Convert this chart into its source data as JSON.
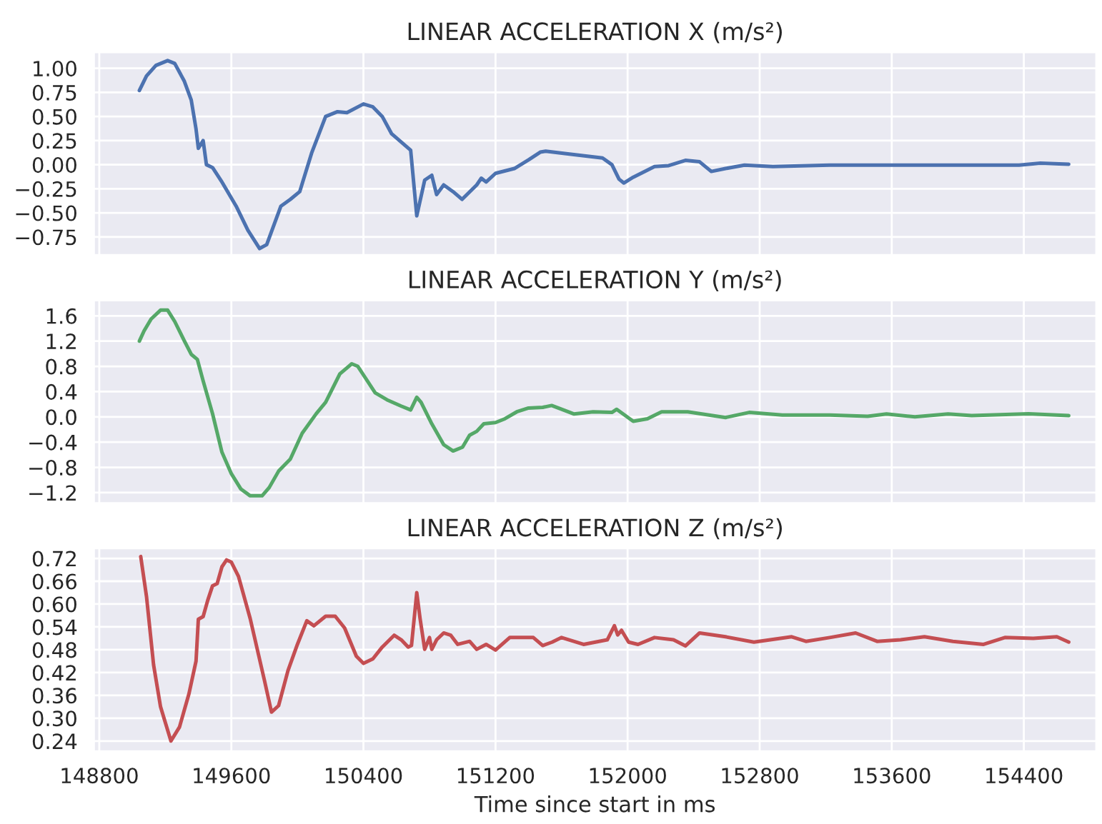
{
  "chart_data": [
    {
      "type": "line",
      "title": "LINEAR ACCELERATION X (m/s²)",
      "grid": true,
      "tick_labels": "y",
      "xlim": [
        148766,
        154840
      ],
      "ylim": [
        -0.94,
        1.17
      ],
      "xticks": [
        148800,
        149600,
        150400,
        151200,
        152000,
        152800,
        153600,
        154400
      ],
      "yticks": [
        {
          "value": -0.75,
          "label": "−0.75"
        },
        {
          "value": -0.5,
          "label": "−0.50"
        },
        {
          "value": -0.25,
          "label": "−0.25"
        },
        {
          "value": 0,
          "label": "0.00"
        },
        {
          "value": 0.25,
          "label": "0.25"
        },
        {
          "value": 0.5,
          "label": "0.50"
        },
        {
          "value": 0.75,
          "label": "0.75"
        },
        {
          "value": 1,
          "label": "1.00"
        }
      ],
      "x": [
        149043,
        149086,
        149143,
        149214,
        149257,
        149314,
        149357,
        149386,
        149400,
        149429,
        149449,
        149486,
        149543,
        149629,
        149700,
        149771,
        149814,
        149900,
        149957,
        150014,
        150086,
        150171,
        150243,
        150300,
        150400,
        150457,
        150514,
        150571,
        150686,
        150723,
        150771,
        150814,
        150843,
        150886,
        150943,
        150997,
        151086,
        151114,
        151143,
        151200,
        151314,
        151400,
        151471,
        151504,
        151647,
        151848,
        151905,
        151948,
        151977,
        152034,
        152163,
        152249,
        152350,
        152436,
        152507,
        152593,
        152708,
        152880,
        153224,
        153511,
        153798,
        154084,
        154371,
        154500,
        154672
      ],
      "series": [
        {
          "color": "#4c72b0",
          "values": [
            0.77,
            0.92,
            1.03,
            1.08,
            1.05,
            0.87,
            0.67,
            0.37,
            0.17,
            0.25,
            0.0,
            -0.03,
            -0.18,
            -0.43,
            -0.68,
            -0.87,
            -0.83,
            -0.43,
            -0.36,
            -0.28,
            0.12,
            0.5,
            0.55,
            0.54,
            0.63,
            0.6,
            0.5,
            0.32,
            0.15,
            -0.53,
            -0.16,
            -0.11,
            -0.31,
            -0.21,
            -0.28,
            -0.36,
            -0.21,
            -0.14,
            -0.18,
            -0.09,
            -0.04,
            0.05,
            0.13,
            0.14,
            0.11,
            0.07,
            0.0,
            -0.15,
            -0.19,
            -0.13,
            -0.02,
            -0.01,
            0.045,
            0.03,
            -0.07,
            -0.04,
            -0.005,
            -0.02,
            -0.005,
            -0.005,
            -0.005,
            -0.005,
            -0.005,
            0.015,
            0.005
          ]
        }
      ]
    },
    {
      "type": "line",
      "title": "LINEAR ACCELERATION Y (m/s²)",
      "grid": true,
      "tick_labels": "y",
      "xlim": [
        148766,
        154840
      ],
      "ylim": [
        -1.37,
        1.85
      ],
      "xticks": [
        148800,
        149600,
        150400,
        151200,
        152000,
        152800,
        153600,
        154400
      ],
      "yticks": [
        {
          "value": -1.2,
          "label": "−1.2"
        },
        {
          "value": -0.8,
          "label": "−0.8"
        },
        {
          "value": -0.4,
          "label": "−0.4"
        },
        {
          "value": 0,
          "label": "0.0"
        },
        {
          "value": 0.4,
          "label": "0.4"
        },
        {
          "value": 0.8,
          "label": "0.8"
        },
        {
          "value": 1.2,
          "label": "1.2"
        },
        {
          "value": 1.6,
          "label": "1.6"
        }
      ],
      "x": [
        149043,
        149071,
        149114,
        149171,
        149214,
        149257,
        149314,
        149357,
        149394,
        149429,
        149486,
        149543,
        149600,
        149657,
        149714,
        149786,
        149829,
        149886,
        149957,
        150029,
        150114,
        150171,
        150257,
        150329,
        150366,
        150471,
        150543,
        150629,
        150686,
        150723,
        150749,
        150814,
        150886,
        150943,
        151000,
        151043,
        151086,
        151129,
        151200,
        151257,
        151329,
        151400,
        151486,
        151540,
        151600,
        151676,
        151791,
        151905,
        151934,
        152034,
        152120,
        152206,
        152364,
        152593,
        152736,
        152937,
        153224,
        153454,
        153568,
        153740,
        153941,
        154084,
        154428,
        154672
      ],
      "series": [
        {
          "color": "#55a868",
          "values": [
            1.2,
            1.36,
            1.55,
            1.69,
            1.69,
            1.51,
            1.21,
            0.99,
            0.91,
            0.57,
            0.05,
            -0.56,
            -0.9,
            -1.14,
            -1.25,
            -1.25,
            -1.12,
            -0.86,
            -0.67,
            -0.26,
            0.05,
            0.23,
            0.68,
            0.84,
            0.8,
            0.38,
            0.27,
            0.17,
            0.11,
            0.31,
            0.23,
            -0.11,
            -0.44,
            -0.54,
            -0.48,
            -0.29,
            -0.23,
            -0.11,
            -0.09,
            -0.03,
            0.08,
            0.14,
            0.15,
            0.18,
            0.12,
            0.045,
            0.08,
            0.07,
            0.12,
            -0.07,
            -0.03,
            0.08,
            0.08,
            -0.01,
            0.07,
            0.03,
            0.03,
            0.01,
            0.045,
            0.0,
            0.045,
            0.02,
            0.05,
            0.02
          ]
        }
      ]
    },
    {
      "type": "line",
      "title": "LINEAR ACCELERATION Z (m/s²)",
      "xlabel": "Time since start in ms",
      "grid": true,
      "xlim": [
        148766,
        154840
      ],
      "ylim": [
        0.2125,
        0.747
      ],
      "xticks": [
        148800,
        149600,
        150400,
        151200,
        152000,
        152800,
        153600,
        154400
      ],
      "yticks": [
        {
          "value": 0.24,
          "label": "0.24"
        },
        {
          "value": 0.3,
          "label": "0.30"
        },
        {
          "value": 0.36,
          "label": "0.36"
        },
        {
          "value": 0.42,
          "label": "0.42"
        },
        {
          "value": 0.48,
          "label": "0.48"
        },
        {
          "value": 0.54,
          "label": "0.54"
        },
        {
          "value": 0.6,
          "label": "0.60"
        },
        {
          "value": 0.66,
          "label": "0.66"
        },
        {
          "value": 0.72,
          "label": "0.72"
        }
      ],
      "x": [
        149051,
        149086,
        149129,
        149171,
        149234,
        149286,
        149343,
        149386,
        149400,
        149429,
        149457,
        149486,
        149514,
        149543,
        149571,
        149600,
        149643,
        149714,
        149800,
        149843,
        149886,
        149943,
        150000,
        150057,
        150100,
        150171,
        150229,
        150286,
        150357,
        150400,
        150457,
        150514,
        150586,
        150629,
        150671,
        150691,
        150723,
        150743,
        150771,
        150800,
        150814,
        150843,
        150886,
        150929,
        150971,
        151043,
        151086,
        151143,
        151200,
        151286,
        151429,
        151486,
        151543,
        151600,
        151733,
        151877,
        151920,
        151940,
        151963,
        152006,
        152063,
        152163,
        152278,
        152350,
        152436,
        152593,
        152765,
        152994,
        153080,
        153224,
        153381,
        153511,
        153654,
        153798,
        153970,
        154156,
        154285,
        154457,
        154600,
        154672
      ],
      "series": [
        {
          "color": "#c44e52",
          "values": [
            0.725,
            0.62,
            0.44,
            0.33,
            0.24,
            0.277,
            0.364,
            0.45,
            0.56,
            0.567,
            0.61,
            0.648,
            0.654,
            0.698,
            0.716,
            0.71,
            0.673,
            0.562,
            0.4,
            0.316,
            0.333,
            0.425,
            0.494,
            0.556,
            0.543,
            0.568,
            0.568,
            0.537,
            0.463,
            0.444,
            0.456,
            0.487,
            0.518,
            0.506,
            0.487,
            0.491,
            0.63,
            0.562,
            0.481,
            0.512,
            0.481,
            0.506,
            0.524,
            0.518,
            0.494,
            0.502,
            0.481,
            0.494,
            0.479,
            0.512,
            0.512,
            0.491,
            0.5,
            0.512,
            0.494,
            0.506,
            0.543,
            0.519,
            0.531,
            0.5,
            0.494,
            0.512,
            0.506,
            0.49,
            0.524,
            0.514,
            0.5,
            0.514,
            0.502,
            0.512,
            0.524,
            0.502,
            0.506,
            0.514,
            0.502,
            0.494,
            0.512,
            0.51,
            0.514,
            0.5
          ]
        }
      ]
    }
  ]
}
